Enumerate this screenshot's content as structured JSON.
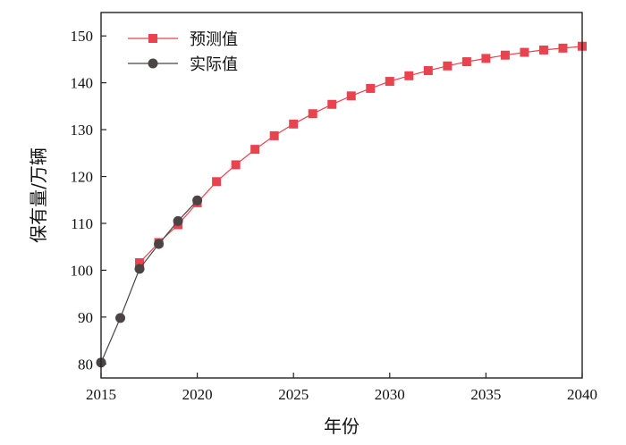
{
  "chart_data": {
    "type": "line",
    "xlabel": "年份",
    "ylabel": "保有量/万辆",
    "xlim": [
      2015,
      2040
    ],
    "ylim": [
      77,
      155
    ],
    "xticks": [
      2015,
      2020,
      2025,
      2030,
      2035,
      2040
    ],
    "yticks": [
      80,
      90,
      100,
      110,
      120,
      130,
      140,
      150
    ],
    "grid": false,
    "legend_position": "top-left",
    "series": [
      {
        "name": "预测值",
        "color": "#e8434e",
        "marker": "square",
        "x": [
          2017,
          2018,
          2019,
          2020,
          2021,
          2022,
          2023,
          2024,
          2025,
          2026,
          2027,
          2028,
          2029,
          2030,
          2031,
          2032,
          2033,
          2034,
          2035,
          2036,
          2037,
          2038,
          2039,
          2040
        ],
        "values": [
          101.6,
          105.9,
          109.7,
          114.4,
          118.9,
          122.5,
          125.8,
          128.7,
          131.2,
          133.4,
          135.4,
          137.2,
          138.8,
          140.3,
          141.5,
          142.6,
          143.6,
          144.5,
          145.2,
          145.9,
          146.5,
          147.0,
          147.4,
          147.8
        ]
      },
      {
        "name": "实际值",
        "color": "#4a4444",
        "marker": "circle",
        "x": [
          2015,
          2016,
          2017,
          2018,
          2019,
          2020
        ],
        "values": [
          80.3,
          89.8,
          100.3,
          105.6,
          110.5,
          114.9
        ]
      }
    ]
  }
}
